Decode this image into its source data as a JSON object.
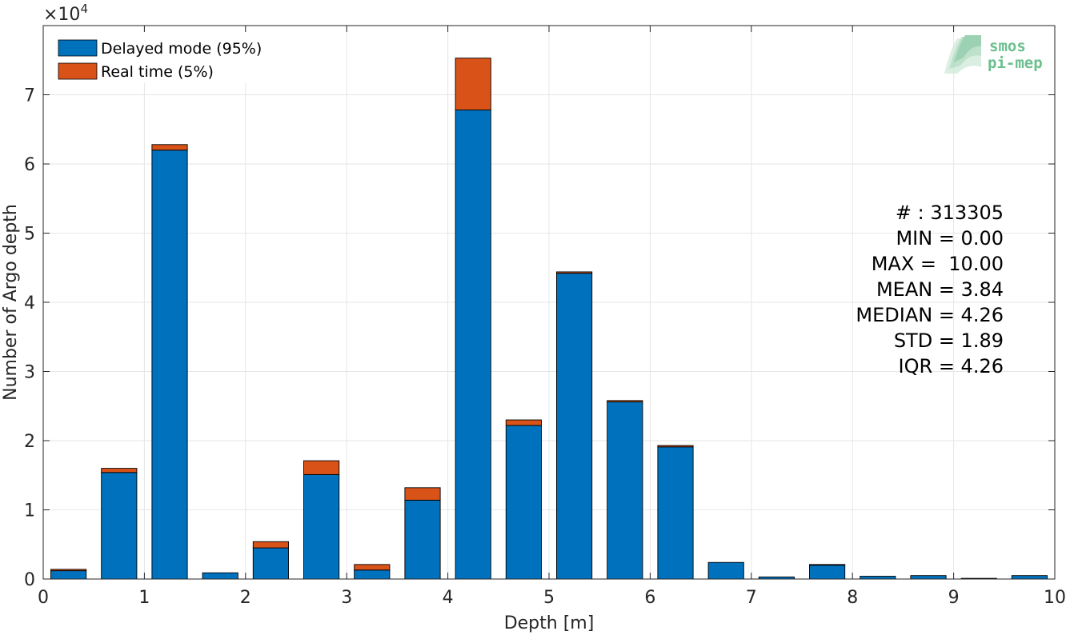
{
  "chart_data": {
    "type": "bar",
    "stacked": true,
    "xlabel": "Depth [m]",
    "ylabel": "Number of Argo depth",
    "y_multiplier": "×10",
    "y_exponent": "4",
    "xlim": [
      0,
      10
    ],
    "ylim": [
      0,
      80000
    ],
    "xticks": [
      "0",
      "1",
      "2",
      "3",
      "4",
      "5",
      "6",
      "7",
      "8",
      "9",
      "10"
    ],
    "yticks": [
      "0",
      "1",
      "2",
      "3",
      "4",
      "5",
      "6",
      "7"
    ],
    "grid": true,
    "legend_position": "top-left",
    "bin_width": 0.5,
    "categories": [
      0.25,
      0.75,
      1.25,
      1.75,
      2.25,
      2.75,
      3.25,
      3.75,
      4.25,
      4.75,
      5.25,
      5.75,
      6.25,
      6.75,
      7.25,
      7.75,
      8.25,
      8.75,
      9.25,
      9.75
    ],
    "series": [
      {
        "name": "Delayed mode (95%)",
        "color": "#0072BD",
        "values": [
          1200,
          15400,
          62000,
          900,
          4500,
          15100,
          1300,
          11400,
          67800,
          22200,
          44200,
          25600,
          19100,
          2400,
          300,
          2000,
          400,
          500,
          100,
          500
        ]
      },
      {
        "name": "Real time (5%)",
        "color": "#D95319",
        "values": [
          200,
          600,
          800,
          0,
          900,
          2000,
          800,
          1800,
          7500,
          800,
          200,
          200,
          200,
          0,
          0,
          100,
          0,
          0,
          0,
          0
        ]
      }
    ],
    "stats": [
      "# : 313305",
      "MIN = 0.00",
      "MAX =  10.00",
      "MEAN = 3.84",
      "MEDIAN = 4.26",
      "STD = 1.89",
      "IQR = 4.26"
    ]
  },
  "logo": {
    "line1": "smos",
    "line2": "pi-mep",
    "color": "#6bbf8e"
  }
}
